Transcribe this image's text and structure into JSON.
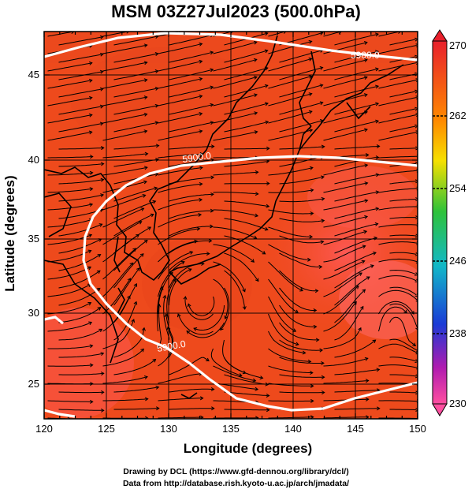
{
  "title": "MSM 03Z27Jul2023 (500.0hPa)",
  "x_axis": {
    "label": "Longitude (degrees)",
    "ticks": [
      "120",
      "125",
      "130",
      "135",
      "140",
      "145",
      "150"
    ]
  },
  "y_axis": {
    "label": "Latitude  (degrees)",
    "ticks": [
      "25",
      "30",
      "35",
      "40",
      "45"
    ]
  },
  "colorbar": {
    "ticks": [
      "270",
      "262",
      "254",
      "246",
      "238",
      "230"
    ],
    "colors": [
      "#e8202c",
      "#ff8a00",
      "#f6e000",
      "#2ec23a",
      "#12b8c8",
      "#1a3bd6",
      "#b01bb0",
      "#ff4fa0"
    ]
  },
  "contours": [
    {
      "label": "5900.0",
      "color": "#ffffff"
    },
    {
      "label": "5900.0",
      "color": "#ffffff"
    },
    {
      "label": "5900.0",
      "color": "#ffffff"
    }
  ],
  "credits": {
    "line1": "Drawing by DCL (https://www.gfd-dennou.org/library/dcl/)",
    "line2": "Data from http://database.rish.kyoto-u.ac.jp/arch/jmadata/"
  },
  "map": {
    "field": "temperature (K)",
    "overlay": "wind streamlines",
    "projection": "lat-lon",
    "lon_range": [
      120,
      150
    ],
    "lat_range": [
      22.5,
      47.7
    ]
  }
}
